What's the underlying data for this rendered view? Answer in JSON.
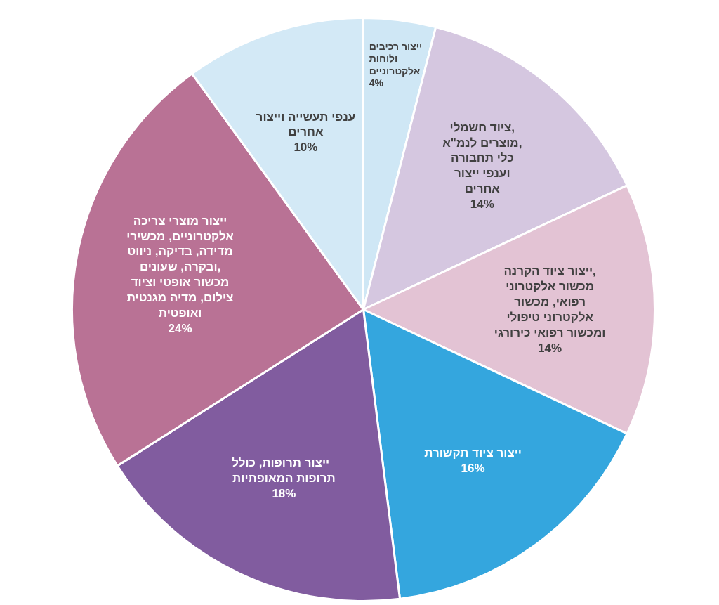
{
  "chart_data": {
    "type": "pie",
    "categories": [
      "ייצור רכיבים\nולוחות\nאלקטרוניים",
      "ציוד חשמלי,\nמוצרים לנמ\"א,\nכלי תחבורה\nוענפי ייצור\nאחרים",
      "ייצור ציוד הקרנה,\nמכשור אלקטרוני\nרפואי, מכשור\nאלקטרוני טיפולי\nומכשור רפואי כירורגי",
      "ייצור ציוד תקשורת",
      "ייצור תרופות,   כולל\nתרופות המאופתיות",
      "ייצור מוצרי צריכה\nאלקטרוניים, מכשירי\nמדידה, בדיקה, ניווט\nובקרה, שעונים,\nמכשור אופטי וציוד\nצילום, מדיה מגנטית\nואופטית",
      "ענפי תעשייה וייצור\nאחרים"
    ],
    "values": [
      4,
      14,
      14,
      16,
      18,
      24,
      10
    ],
    "colors": [
      "#cfe7f5",
      "#d5c7e0",
      "#e3c3d4",
      "#34a6de",
      "#815c9f",
      "#b97295",
      "#d3e9f6"
    ],
    "value_labels": [
      "4%",
      "14%",
      "14%",
      "16%",
      "18%",
      "24%",
      "10%"
    ]
  }
}
